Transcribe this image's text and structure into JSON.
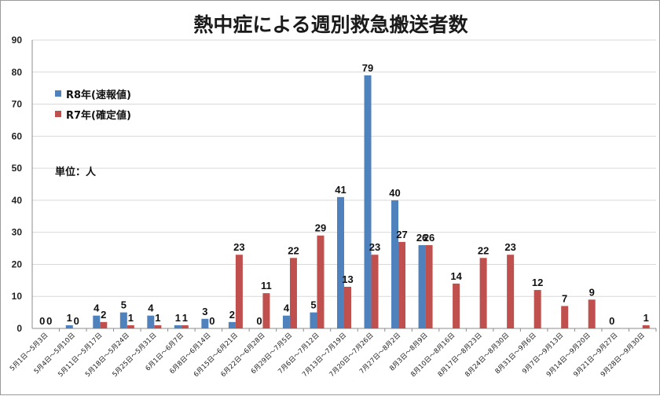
{
  "chart_data": {
    "type": "bar",
    "title": "熱中症による週別救急搬送者数",
    "unit_label": "単位：人",
    "ylim": [
      0,
      90
    ],
    "yticks": [
      0,
      10,
      20,
      30,
      40,
      50,
      60,
      70,
      80,
      90
    ],
    "grid": true,
    "legend_position": "top-left",
    "categories": [
      "5月1日～5月3日",
      "5月4日～5月10日",
      "5月11日～5月17日",
      "5月18日～5月24日",
      "5月25日～5月31日",
      "6月1日～6月7日",
      "6月8日～6月14日",
      "6月15日～6月21日",
      "6月22日～6月28日",
      "6月29日～7月5日",
      "7月6日～7月12日",
      "7月13日～7月19日",
      "7月20日～7月26日",
      "7月27日～8月2日",
      "8月3日～8月9日",
      "8月10日～8月16日",
      "8月17日～8月23日",
      "8月24日～8月30日",
      "8月31日～9月6日",
      "9月7日～9月13日",
      "9月14日～9月20日",
      "9月21日～9月27日",
      "9月28日～9月30日"
    ],
    "series": [
      {
        "name": "R8年(速報値)",
        "color": "#4f81bd",
        "values": [
          0,
          1,
          4,
          5,
          4,
          1,
          3,
          2,
          0,
          4,
          5,
          41,
          79,
          40,
          26,
          null,
          null,
          null,
          null,
          null,
          null,
          0,
          null
        ]
      },
      {
        "name": "R7年(確定値)",
        "color": "#c0504d",
        "values": [
          0,
          0,
          2,
          1,
          1,
          1,
          0,
          23,
          11,
          22,
          29,
          13,
          23,
          27,
          26,
          14,
          22,
          23,
          12,
          7,
          9,
          null,
          1
        ]
      }
    ]
  }
}
